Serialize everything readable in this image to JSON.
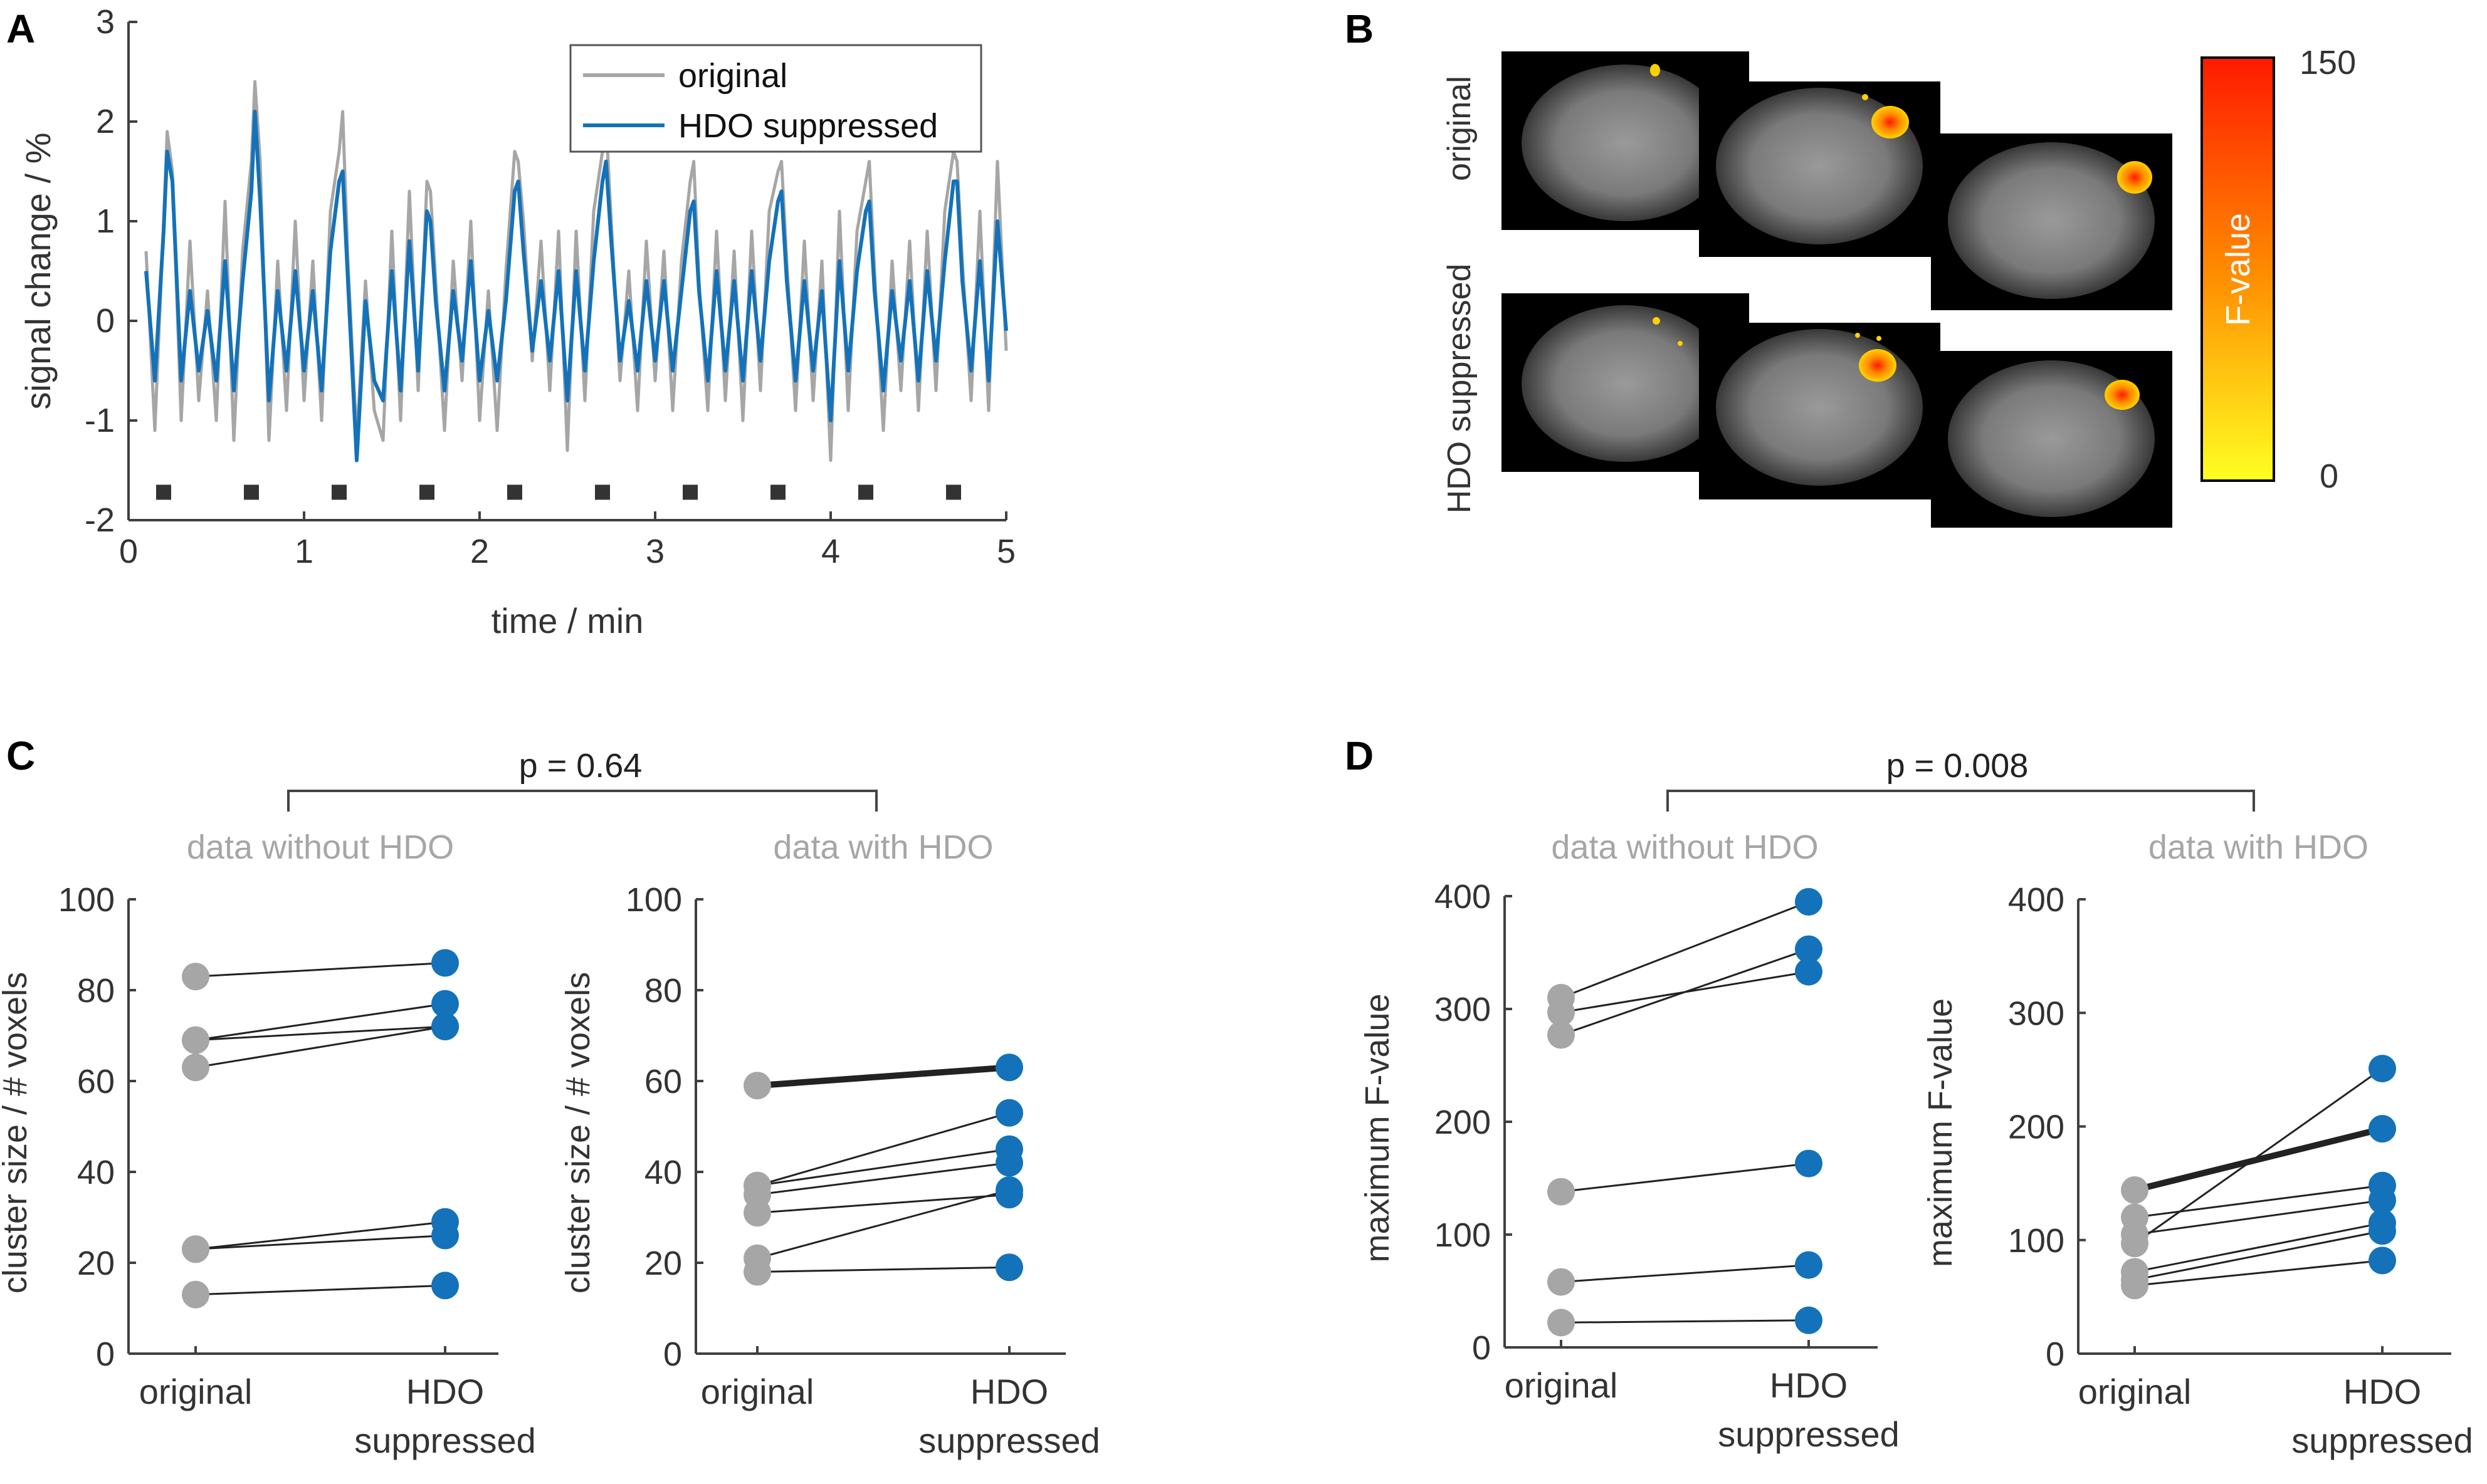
{
  "panels": {
    "A": {
      "letter": "A"
    },
    "B": {
      "letter": "B",
      "row_labels": [
        "original",
        "HDO suppressed"
      ],
      "colorbar": {
        "max_label": "150",
        "min_label": "0",
        "title": "F-value",
        "color_top": "#ff1500",
        "color_bottom": "#ffff20"
      }
    },
    "C": {
      "letter": "C",
      "p_value": "p = 0.64"
    },
    "D": {
      "letter": "D",
      "p_value": "p = 0.008"
    }
  },
  "colors": {
    "original": "#a6a6a6",
    "hdo": "#1372b9",
    "axis": "#404040",
    "subtitle": "#a6a6a6",
    "line": "#222222"
  },
  "chart_data": [
    {
      "id": "A",
      "type": "line",
      "xlabel": "time / min",
      "ylabel": "signal change / %",
      "xlim": [
        0,
        5
      ],
      "ylim": [
        -2,
        3
      ],
      "xticks": [
        0,
        1,
        2,
        3,
        4,
        5
      ],
      "yticks": [
        -2,
        -1,
        0,
        1,
        2,
        3
      ],
      "legend": {
        "placement": "top-right",
        "entries": [
          "original",
          "HDO suppressed"
        ]
      },
      "stimulus_onsets_min": [
        0.2,
        0.7,
        1.2,
        1.7,
        2.2,
        2.7,
        3.2,
        3.7,
        4.2,
        4.7
      ],
      "stimulus_y": -1.72,
      "series": [
        {
          "name": "original",
          "color": "#a6a6a6",
          "x": [
            0.1,
            0.15,
            0.2,
            0.22,
            0.25,
            0.3,
            0.35,
            0.4,
            0.45,
            0.5,
            0.55,
            0.6,
            0.65,
            0.7,
            0.72,
            0.75,
            0.8,
            0.85,
            0.9,
            0.95,
            1.0,
            1.05,
            1.1,
            1.15,
            1.2,
            1.22,
            1.25,
            1.3,
            1.35,
            1.4,
            1.45,
            1.5,
            1.55,
            1.6,
            1.65,
            1.7,
            1.72,
            1.75,
            1.8,
            1.85,
            1.9,
            1.95,
            2.0,
            2.05,
            2.1,
            2.15,
            2.2,
            2.22,
            2.25,
            2.3,
            2.35,
            2.4,
            2.45,
            2.5,
            2.55,
            2.6,
            2.65,
            2.7,
            2.72,
            2.75,
            2.8,
            2.85,
            2.9,
            2.95,
            3.0,
            3.05,
            3.1,
            3.15,
            3.2,
            3.22,
            3.25,
            3.3,
            3.35,
            3.4,
            3.45,
            3.5,
            3.55,
            3.6,
            3.65,
            3.7,
            3.72,
            3.75,
            3.8,
            3.85,
            3.9,
            3.95,
            4.0,
            4.05,
            4.1,
            4.15,
            4.2,
            4.22,
            4.25,
            4.3,
            4.35,
            4.4,
            4.45,
            4.5,
            4.55,
            4.6,
            4.65,
            4.7,
            4.72,
            4.75,
            4.8,
            4.85,
            4.9,
            4.95,
            5.0
          ],
          "y": [
            0.7,
            -1.1,
            1.0,
            1.9,
            1.5,
            -1.0,
            0.8,
            -0.8,
            0.3,
            -1.0,
            1.2,
            -1.2,
            0.7,
            1.6,
            2.4,
            1.6,
            -1.2,
            0.6,
            -0.9,
            1.0,
            -0.8,
            0.6,
            -1.0,
            1.1,
            1.7,
            2.1,
            0.6,
            -1.2,
            0.4,
            -0.9,
            -1.2,
            0.9,
            -1.0,
            1.3,
            -0.7,
            1.4,
            1.3,
            0.4,
            -1.1,
            0.6,
            -0.6,
            1.0,
            -1.0,
            0.3,
            -1.1,
            0.5,
            1.7,
            1.6,
            1.0,
            -0.4,
            0.8,
            -0.7,
            0.9,
            -1.3,
            0.9,
            -0.8,
            1.1,
            1.7,
            2.0,
            1.0,
            -0.6,
            0.5,
            -0.9,
            0.8,
            -0.6,
            0.7,
            -0.9,
            0.6,
            1.4,
            1.6,
            0.4,
            -0.9,
            0.9,
            -0.8,
            0.7,
            -1.0,
            0.9,
            -0.7,
            1.1,
            1.5,
            1.6,
            0.6,
            -0.9,
            0.8,
            -0.8,
            0.6,
            -1.4,
            1.1,
            -0.9,
            0.9,
            1.4,
            1.6,
            0.5,
            -1.1,
            0.6,
            -0.7,
            0.8,
            -0.9,
            0.9,
            -0.7,
            1.1,
            1.7,
            1.6,
            0.6,
            -0.8,
            1.1,
            -0.9,
            1.6,
            -0.3
          ]
        },
        {
          "name": "HDO suppressed",
          "color": "#1372b9",
          "x": [
            0.1,
            0.15,
            0.2,
            0.22,
            0.25,
            0.3,
            0.35,
            0.4,
            0.45,
            0.5,
            0.55,
            0.6,
            0.65,
            0.7,
            0.72,
            0.75,
            0.8,
            0.85,
            0.9,
            0.95,
            1.0,
            1.05,
            1.1,
            1.15,
            1.2,
            1.22,
            1.25,
            1.3,
            1.35,
            1.4,
            1.45,
            1.5,
            1.55,
            1.6,
            1.65,
            1.7,
            1.72,
            1.75,
            1.8,
            1.85,
            1.9,
            1.95,
            2.0,
            2.05,
            2.1,
            2.15,
            2.2,
            2.22,
            2.25,
            2.3,
            2.35,
            2.4,
            2.45,
            2.5,
            2.55,
            2.6,
            2.65,
            2.7,
            2.72,
            2.75,
            2.8,
            2.85,
            2.9,
            2.95,
            3.0,
            3.05,
            3.1,
            3.15,
            3.2,
            3.22,
            3.25,
            3.3,
            3.35,
            3.4,
            3.45,
            3.5,
            3.55,
            3.6,
            3.65,
            3.7,
            3.72,
            3.75,
            3.8,
            3.85,
            3.9,
            3.95,
            4.0,
            4.05,
            4.1,
            4.15,
            4.2,
            4.22,
            4.25,
            4.3,
            4.35,
            4.4,
            4.45,
            4.5,
            4.55,
            4.6,
            4.65,
            4.7,
            4.72,
            4.75,
            4.8,
            4.85,
            4.9,
            4.95,
            5.0
          ],
          "y": [
            0.5,
            -0.6,
            0.9,
            1.7,
            1.4,
            -0.6,
            0.3,
            -0.5,
            0.1,
            -0.6,
            0.6,
            -0.7,
            0.4,
            1.3,
            2.1,
            1.2,
            -0.8,
            0.3,
            -0.5,
            0.5,
            -0.5,
            0.3,
            -0.7,
            0.7,
            1.4,
            1.5,
            0.4,
            -1.4,
            0.2,
            -0.6,
            -0.8,
            0.5,
            -0.7,
            0.8,
            -0.5,
            1.1,
            1.0,
            0.2,
            -0.7,
            0.3,
            -0.4,
            0.6,
            -0.6,
            0.1,
            -0.6,
            0.2,
            1.3,
            1.4,
            0.7,
            -0.3,
            0.4,
            -0.4,
            0.5,
            -0.8,
            0.5,
            -0.5,
            0.6,
            1.4,
            1.6,
            0.8,
            -0.4,
            0.2,
            -0.5,
            0.4,
            -0.4,
            0.4,
            -0.5,
            0.3,
            1.1,
            1.2,
            0.3,
            -0.6,
            0.5,
            -0.5,
            0.4,
            -0.6,
            0.5,
            -0.4,
            0.6,
            1.2,
            1.3,
            0.4,
            -0.6,
            0.4,
            -0.5,
            0.3,
            -1.0,
            0.6,
            -0.5,
            0.5,
            1.1,
            1.2,
            0.3,
            -0.7,
            0.3,
            -0.4,
            0.4,
            -0.6,
            0.5,
            -0.4,
            0.6,
            1.4,
            1.4,
            0.4,
            -0.5,
            0.6,
            -0.6,
            1.0,
            -0.1
          ]
        }
      ]
    },
    {
      "id": "C-left",
      "type": "paired-scatter",
      "subtitle": "data without HDO",
      "ylabel": "cluster size / # voxels",
      "ylim": [
        0,
        100
      ],
      "yticks": [
        0,
        20,
        40,
        60,
        80,
        100
      ],
      "categories": [
        "original",
        "HDO suppressed"
      ],
      "pairs": [
        [
          83,
          86
        ],
        [
          69,
          77
        ],
        [
          69,
          72
        ],
        [
          63,
          72
        ],
        [
          23,
          29
        ],
        [
          23,
          26
        ],
        [
          13,
          15
        ]
      ],
      "bold_pair_index": -1
    },
    {
      "id": "C-right",
      "type": "paired-scatter",
      "subtitle": "data with HDO",
      "ylabel": "cluster size / # voxels",
      "ylim": [
        0,
        100
      ],
      "yticks": [
        0,
        20,
        40,
        60,
        80,
        100
      ],
      "categories": [
        "original",
        "HDO suppressed"
      ],
      "pairs": [
        [
          59,
          63
        ],
        [
          37,
          53
        ],
        [
          37,
          45
        ],
        [
          35,
          42
        ],
        [
          31,
          35
        ],
        [
          21,
          36
        ],
        [
          18,
          19
        ]
      ],
      "bold_pair_index": 0
    },
    {
      "id": "D-left",
      "type": "paired-scatter",
      "subtitle": "data without HDO",
      "ylabel": "maximum F-value",
      "ylim": [
        0,
        400
      ],
      "yticks": [
        0,
        100,
        200,
        300,
        400
      ],
      "categories": [
        "original",
        "HDO suppressed"
      ],
      "pairs": [
        [
          310,
          395
        ],
        [
          297,
          333
        ],
        [
          277,
          353
        ],
        [
          138,
          163
        ],
        [
          58,
          73
        ],
        [
          22,
          24
        ]
      ],
      "bold_pair_index": -1
    },
    {
      "id": "D-right",
      "type": "paired-scatter",
      "subtitle": "data with HDO",
      "ylabel": "maximum F-value",
      "ylim": [
        0,
        400
      ],
      "yticks": [
        0,
        100,
        200,
        300,
        400
      ],
      "categories": [
        "original",
        "HDO suppressed"
      ],
      "pairs": [
        [
          144,
          198
        ],
        [
          120,
          148
        ],
        [
          105,
          135
        ],
        [
          97,
          251
        ],
        [
          72,
          115
        ],
        [
          65,
          108
        ],
        [
          60,
          82
        ]
      ],
      "bold_pair_index": 0
    }
  ]
}
